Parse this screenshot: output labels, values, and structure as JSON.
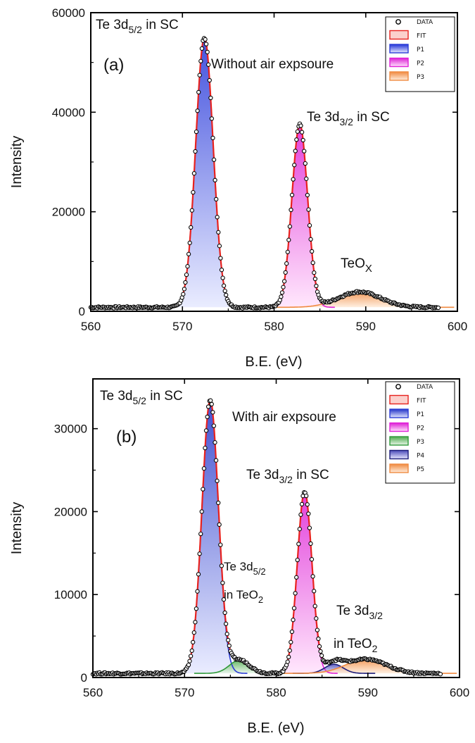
{
  "chart_data": [
    {
      "type": "line",
      "panel_label": "(a)",
      "condition": "Without air expsoure",
      "xlabel": "B.E. (eV)",
      "ylabel": "Intensity",
      "xlim": [
        560,
        600
      ],
      "ylim": [
        0,
        60000
      ],
      "xticks": [
        "560",
        "570",
        "580",
        "590",
        "600"
      ],
      "yticks": [
        "0",
        "20000",
        "40000",
        "60000"
      ],
      "legend": [
        "DATA",
        "FIT",
        "P1",
        "P2",
        "P3"
      ],
      "annotations": {
        "peak1": {
          "main": "Te 3d",
          "sub": "5/2",
          "tail": " in SC"
        },
        "peak2": {
          "main": "Te 3d",
          "sub": "3/2",
          "tail": " in SC"
        },
        "oxide": {
          "main": "TeO",
          "sub": "X"
        }
      },
      "data_range": [
        560,
        598
      ],
      "baseline": 800,
      "series": [
        {
          "name": "P1",
          "center": 572.4,
          "height": 54200,
          "width": 0.95,
          "color": "#2a3bd6"
        },
        {
          "name": "P2",
          "center": 582.8,
          "height": 36700,
          "width": 0.85,
          "color": "#e020d8"
        },
        {
          "name": "P3",
          "center": 589.3,
          "height": 3100,
          "width": 2.3,
          "color": "#f08a40"
        }
      ]
    },
    {
      "type": "line",
      "panel_label": "(b)",
      "condition": "With air expsoure",
      "xlabel": "B.E. (eV)",
      "ylabel": "Intensity",
      "xlim": [
        560,
        600
      ],
      "ylim": [
        0,
        36000
      ],
      "xticks": [
        "560",
        "570",
        "580",
        "590",
        "600"
      ],
      "yticks": [
        "0",
        "10000",
        "20000",
        "30000"
      ],
      "legend": [
        "DATA",
        "FIT",
        "P1",
        "P2",
        "P3",
        "P4",
        "P5"
      ],
      "annotations": {
        "peak1": {
          "main": "Te 3d",
          "sub": "5/2",
          "tail": " in SC"
        },
        "peak2": {
          "main": "Te 3d",
          "sub": "3/2",
          "tail": " in SC"
        },
        "oxide1": {
          "line1_main": "Te 3d",
          "line1_sub": "5/2",
          "line2_main": "in TeO",
          "line2_sub": "2"
        },
        "oxide2": {
          "line1_main": "Te 3d",
          "line1_sub": "3/2",
          "line2_main": "in TeO",
          "line2_sub": "2"
        }
      },
      "data_range": [
        560,
        598
      ],
      "baseline": 500,
      "series": [
        {
          "name": "P1",
          "center": 572.8,
          "height": 32900,
          "width": 0.9,
          "color": "#2a3bd6"
        },
        {
          "name": "P2",
          "center": 583.1,
          "height": 21900,
          "width": 0.8,
          "color": "#e020d8"
        },
        {
          "name": "P3",
          "center": 576.0,
          "height": 1600,
          "width": 1.1,
          "color": "#2f9a3a"
        },
        {
          "name": "P4",
          "center": 586.3,
          "height": 1100,
          "width": 1.0,
          "color": "#1c1c7a"
        },
        {
          "name": "P5",
          "center": 589.8,
          "height": 1700,
          "width": 2.2,
          "color": "#f08a40"
        }
      ]
    }
  ],
  "colors": {
    "fit": "#e8221e",
    "data": "#000000",
    "blue_label": "#1f2fc8",
    "magenta_label": "#d21fc8",
    "orange_label": "#ec8a2e",
    "green_label": "#2f8a2f",
    "navy_label": "#1f2a8a"
  }
}
